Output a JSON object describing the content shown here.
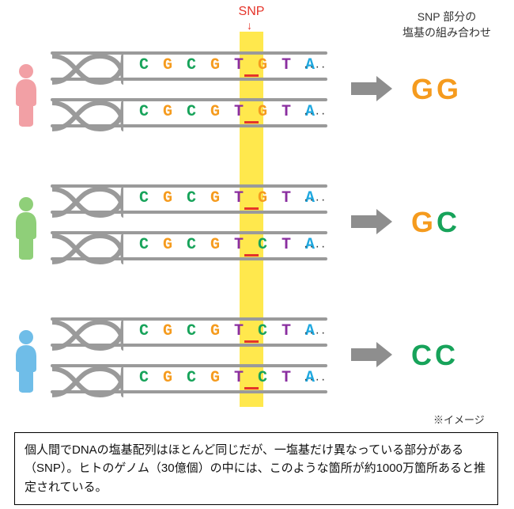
{
  "snp_label": "SNP",
  "right_heading_line1": "SNP 部分の",
  "right_heading_line2": "塩基の組み合わせ",
  "dots": "····",
  "image_note": "※イメージ",
  "caption": "個人間でDNAの塩基配列はほとんど同じだが、一塩基だけ異なっている部分がある（SNP）。ヒトのゲノム（30億個）の中には、このような箇所が約1000万箇所あると推定されている。",
  "base_colors": {
    "C": "#17a35a",
    "G": "#f59b1e",
    "T": "#8a2ea0",
    "A": "#1ea8e0"
  },
  "palette": {
    "highlight": "#ffe84d",
    "strand": "#9a9a9a",
    "snp_red": "#e5342a",
    "arrow": "#8e8e8e",
    "person1": "#f2a0a5",
    "person2": "#8fcf79",
    "person3": "#6fbde8"
  },
  "people": [
    {
      "id": "person-1",
      "color_key": "person1",
      "top_seq": [
        "C",
        "G",
        "C",
        "G",
        "T",
        "G",
        "T",
        "A"
      ],
      "bot_seq": [
        "C",
        "G",
        "C",
        "G",
        "T",
        "G",
        "T",
        "A"
      ],
      "snp_index": 5,
      "result": [
        "G",
        "G"
      ]
    },
    {
      "id": "person-2",
      "color_key": "person2",
      "top_seq": [
        "C",
        "G",
        "C",
        "G",
        "T",
        "G",
        "T",
        "A"
      ],
      "bot_seq": [
        "C",
        "G",
        "C",
        "G",
        "T",
        "C",
        "T",
        "A"
      ],
      "snp_index": 5,
      "result": [
        "G",
        "C"
      ]
    },
    {
      "id": "person-3",
      "color_key": "person3",
      "top_seq": [
        "C",
        "G",
        "C",
        "G",
        "T",
        "C",
        "T",
        "A"
      ],
      "bot_seq": [
        "C",
        "G",
        "C",
        "G",
        "T",
        "C",
        "T",
        "A"
      ],
      "snp_index": 5,
      "result": [
        "C",
        "C"
      ]
    }
  ]
}
